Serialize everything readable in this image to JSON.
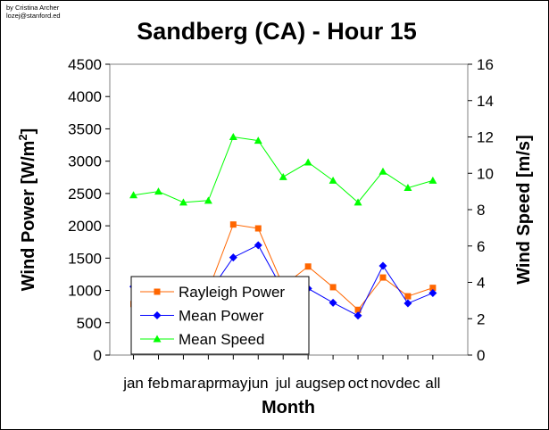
{
  "credit": {
    "line1": "by Cristina Archer",
    "line2": "lozej@stanford.ed"
  },
  "chart_data": {
    "type": "line",
    "title": "Sandberg (CA) - Hour 15",
    "xlabel": "Month",
    "ylabel_left": "Wind Power [W/m²]",
    "ylabel_left_main": "Wind Power [W/m",
    "ylabel_left_sup": "2",
    "ylabel_left_tail": "]",
    "ylabel_right": "Wind Speed [m/s]",
    "categories": [
      "jan",
      "feb",
      "mar",
      "apr",
      "may",
      "jun",
      "jul",
      "aug",
      "sep",
      "oct",
      "nov",
      "dec",
      "all"
    ],
    "ylim_left": [
      0,
      4500
    ],
    "yticks_left": [
      0,
      500,
      1000,
      1500,
      2000,
      2500,
      3000,
      3500,
      4000,
      4500
    ],
    "ylim_right": [
      0,
      16
    ],
    "yticks_right": [
      0,
      2,
      4,
      6,
      8,
      10,
      12,
      14,
      16
    ],
    "grid": false,
    "legend_position": "bottom-left",
    "series": [
      {
        "name": "Rayleigh Power",
        "axis": "left",
        "color": "#ff6600",
        "marker": "square",
        "values": [
          790,
          1010,
          960,
          1000,
          2020,
          1960,
          1070,
          1370,
          1050,
          700,
          1200,
          910,
          1040
        ]
      },
      {
        "name": "Mean Power",
        "axis": "left",
        "color": "#0000ff",
        "marker": "diamond",
        "values": [
          1060,
          960,
          900,
          950,
          1510,
          1700,
          1000,
          1030,
          810,
          610,
          1380,
          800,
          960
        ]
      },
      {
        "name": "Mean Speed",
        "axis": "right",
        "color": "#00ff00",
        "marker": "triangle",
        "values": [
          8.8,
          9.0,
          8.4,
          8.5,
          12.0,
          11.8,
          9.8,
          10.6,
          9.6,
          8.4,
          10.1,
          9.2,
          9.6
        ]
      }
    ]
  }
}
